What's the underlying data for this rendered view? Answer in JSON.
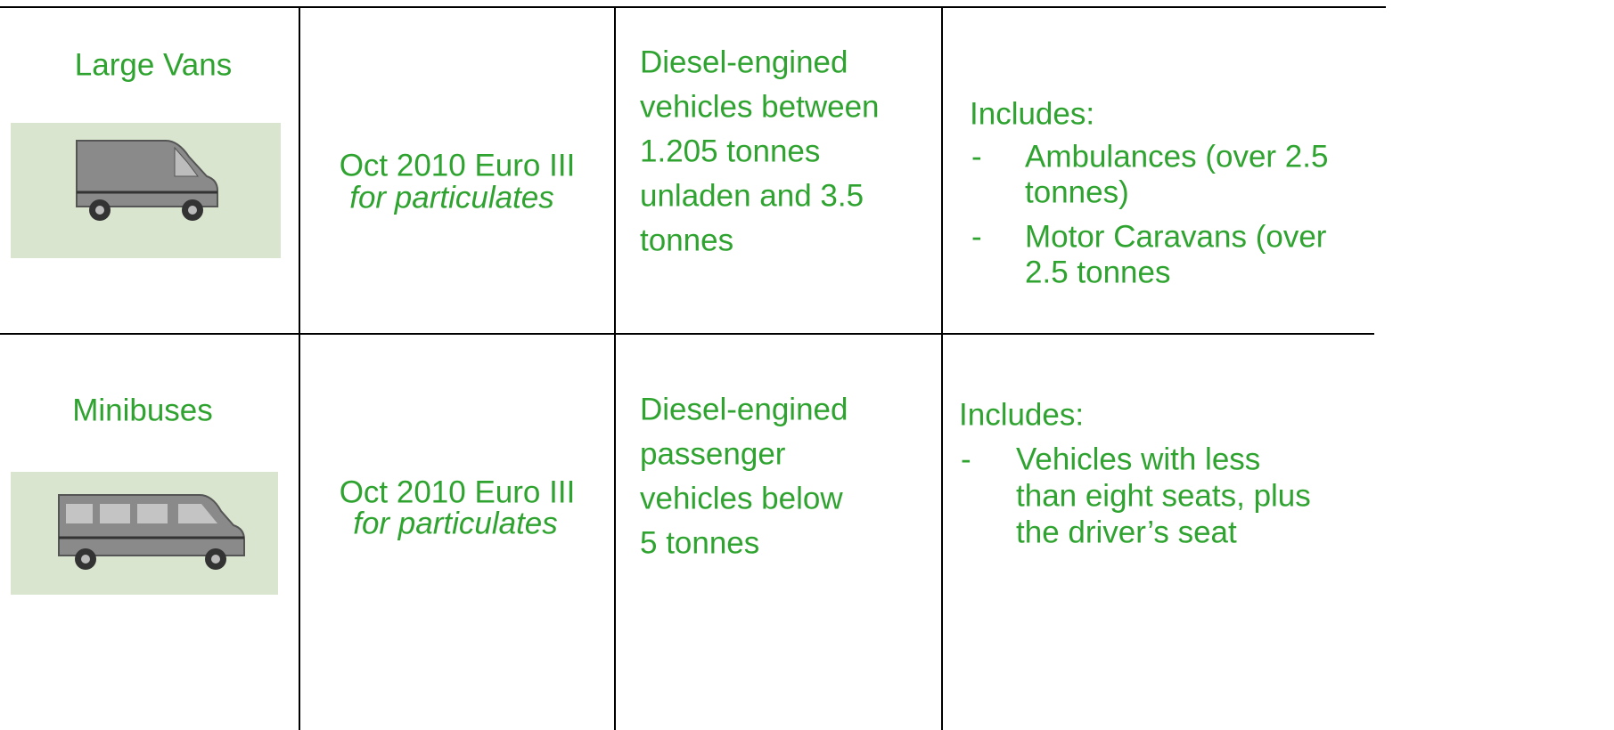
{
  "rows": [
    {
      "name": "Large Vans",
      "standard": "Oct 2010 Euro III",
      "standard_note": "for particulates",
      "description": [
        "Diesel-engined",
        "vehicles between",
        "1.205 tonnes",
        "unladen and 3.5",
        "tonnes"
      ],
      "includes_label": "Includes:",
      "includes": [
        [
          "Ambulances (over 2.5",
          "tonnes)"
        ],
        [
          "Motor Caravans (over",
          "2.5 tonnes"
        ]
      ]
    },
    {
      "name": "Minibuses",
      "standard": "Oct 2010 Euro III",
      "standard_note": "for particulates",
      "description": [
        "Diesel-engined",
        "passenger",
        "vehicles below",
        "5 tonnes"
      ],
      "includes_label": "Includes:",
      "includes": [
        [
          "Vehicles with less",
          "than eight seats, plus",
          "the driver’s seat"
        ]
      ]
    }
  ]
}
